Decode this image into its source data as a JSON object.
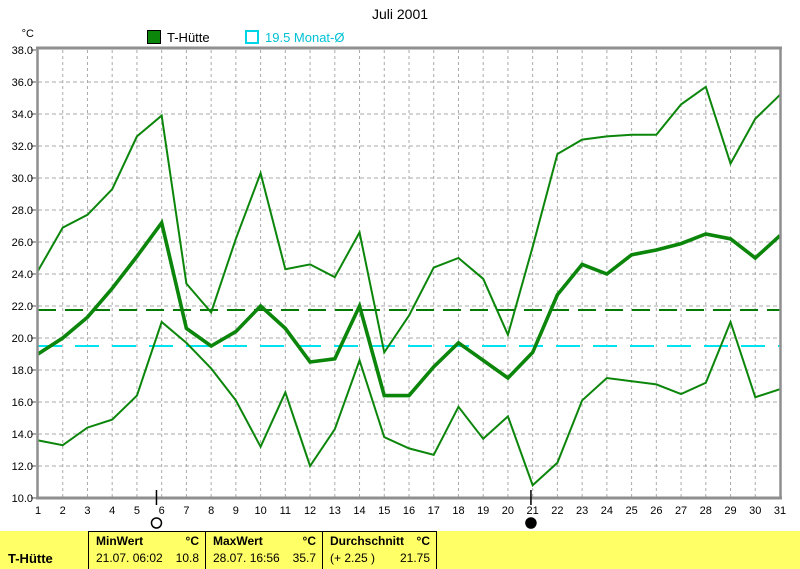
{
  "title": "Juli 2001",
  "legend": {
    "series1_label": "T-Hütte",
    "series1_color": "#0b860b",
    "series2_label": "19.5 Monat-Ø",
    "series2_color": "#00c2d6"
  },
  "chart_data": {
    "type": "line",
    "title": "Juli 2001",
    "ylabel": "°C",
    "ylim": [
      10,
      38
    ],
    "ytick_step": 2,
    "grid": true,
    "x": [
      1,
      2,
      3,
      4,
      5,
      6,
      7,
      8,
      9,
      10,
      11,
      12,
      13,
      14,
      15,
      16,
      17,
      18,
      19,
      20,
      21,
      22,
      23,
      24,
      25,
      26,
      27,
      28,
      29,
      30,
      31
    ],
    "series": [
      {
        "name": "T-Hütte Maximum",
        "color": "#0b860b",
        "width": 2,
        "values": [
          24.2,
          26.9,
          27.7,
          29.3,
          32.6,
          33.9,
          23.4,
          21.6,
          26.2,
          30.3,
          24.3,
          24.6,
          23.8,
          26.6,
          19.1,
          21.4,
          24.4,
          25.0,
          23.7,
          20.2,
          25.7,
          31.5,
          32.4,
          32.6,
          32.7,
          32.7,
          34.6,
          35.7,
          30.9,
          33.7,
          35.2
        ]
      },
      {
        "name": "T-Hütte Minimum",
        "color": "#0b860b",
        "width": 2,
        "values": [
          13.6,
          13.3,
          14.4,
          14.9,
          16.4,
          21.0,
          19.7,
          18.1,
          16.1,
          13.2,
          16.6,
          12.0,
          14.3,
          18.6,
          13.8,
          13.1,
          12.7,
          15.7,
          13.7,
          15.1,
          10.8,
          12.2,
          16.1,
          17.5,
          17.3,
          17.1,
          16.5,
          17.2,
          21.0,
          16.3,
          16.8
        ]
      },
      {
        "name": "T-Hütte Mittel",
        "color": "#0b860b",
        "width": 3.6,
        "values": [
          19.0,
          20.0,
          21.3,
          23.1,
          25.1,
          27.2,
          20.6,
          19.5,
          20.4,
          22.0,
          20.6,
          18.5,
          18.7,
          22.0,
          16.4,
          16.4,
          18.2,
          19.7,
          18.6,
          17.5,
          19.1,
          22.7,
          24.6,
          24.0,
          25.2,
          25.5,
          25.9,
          26.5,
          26.2,
          25.0,
          26.4
        ]
      }
    ],
    "reference_lines": [
      {
        "label": "Durchschnitt",
        "value": 21.75,
        "color": "#067a06",
        "dash": "18,9"
      },
      {
        "label": "Monat-Ø",
        "value": 19.5,
        "color": "#00e2f0",
        "dash": "24,13"
      }
    ],
    "markers": [
      {
        "phase": "full-moon",
        "day": 5.79
      },
      {
        "phase": "new-moon",
        "day": 20.93
      }
    ]
  },
  "status_bar": {
    "station": "T-Hütte",
    "min": {
      "label": "MinWert",
      "unit": "°C",
      "datetime": "21.07.  06:02",
      "value": "10.8"
    },
    "max": {
      "label": "MaxWert",
      "unit": "°C",
      "datetime": "28.07.  16:56",
      "value": "35.7"
    },
    "avg": {
      "label": "Durchschnitt",
      "unit": "°C",
      "deviation": "(+ 2.25 )",
      "value": "21.75"
    }
  }
}
